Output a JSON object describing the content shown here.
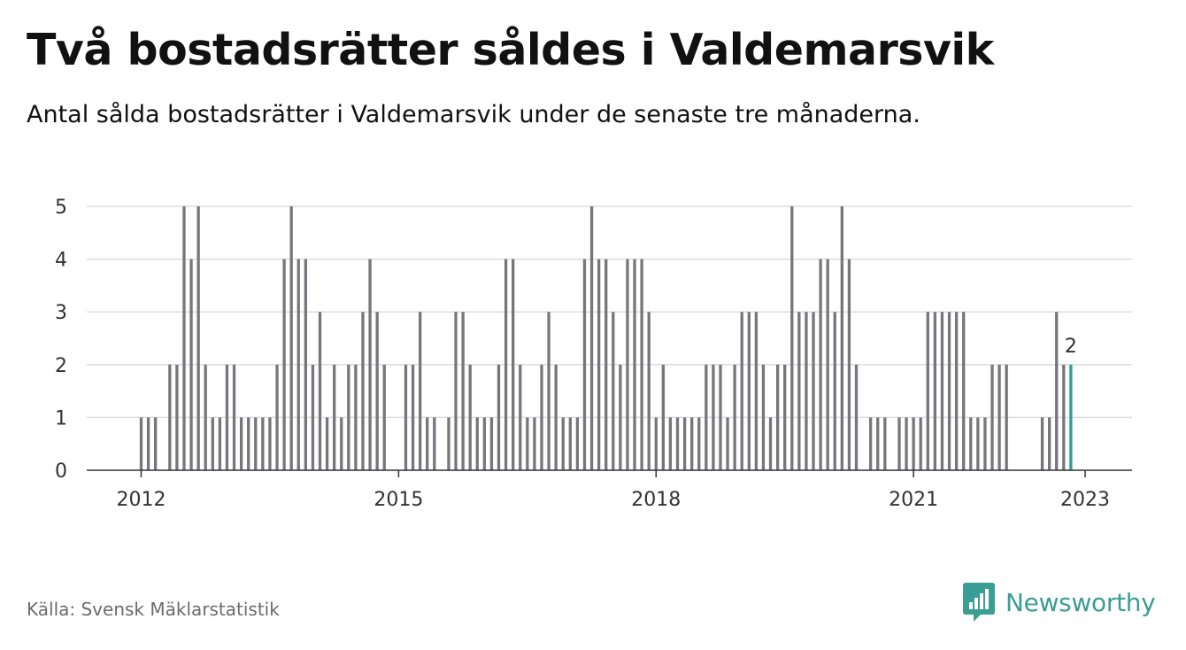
{
  "title": "Två bostadsrätter såldes i Valdemarsvik",
  "subtitle": "Antal sålda bostadsrätter i Valdemarsvik under de senaste tre månaderna.",
  "source": "Källa: Svensk Mäklarstatistik",
  "brand": {
    "name": "Newsworthy",
    "icon": "newsworthy-logo-icon",
    "color": "#3a9e95"
  },
  "colors": {
    "bar": "#77767c",
    "highlight": "#2aa198",
    "grid": "#dddddd",
    "axis": "#333333"
  },
  "chart_data": {
    "type": "bar",
    "x_start": "2012-01",
    "x_end": "2023-01",
    "ylim": [
      0,
      5
    ],
    "yticks": [
      0,
      1,
      2,
      3,
      4,
      5
    ],
    "xticks": [
      "2012",
      "2015",
      "2018",
      "2021",
      "2023"
    ],
    "xlabel": "",
    "ylabel": "",
    "grid": true,
    "highlight_last": true,
    "last_value_label": "2",
    "values": [
      1,
      1,
      1,
      0,
      2,
      2,
      5,
      4,
      5,
      2,
      1,
      1,
      2,
      2,
      1,
      1,
      1,
      1,
      1,
      2,
      4,
      5,
      4,
      4,
      2,
      3,
      1,
      2,
      1,
      2,
      2,
      3,
      4,
      3,
      2,
      0,
      0,
      2,
      2,
      3,
      1,
      1,
      0,
      1,
      3,
      3,
      2,
      1,
      1,
      1,
      2,
      4,
      4,
      2,
      1,
      1,
      2,
      3,
      2,
      1,
      1,
      1,
      4,
      5,
      4,
      4,
      3,
      2,
      4,
      4,
      4,
      3,
      1,
      2,
      1,
      1,
      1,
      1,
      1,
      2,
      2,
      2,
      1,
      2,
      3,
      3,
      3,
      2,
      1,
      2,
      2,
      5,
      3,
      3,
      3,
      4,
      4,
      3,
      5,
      4,
      2,
      0,
      1,
      1,
      1,
      0,
      1,
      1,
      1,
      1,
      3,
      3,
      3,
      3,
      3,
      3,
      1,
      1,
      1,
      2,
      2,
      2,
      0,
      0,
      0,
      0,
      1,
      1,
      3,
      2,
      2
    ]
  }
}
